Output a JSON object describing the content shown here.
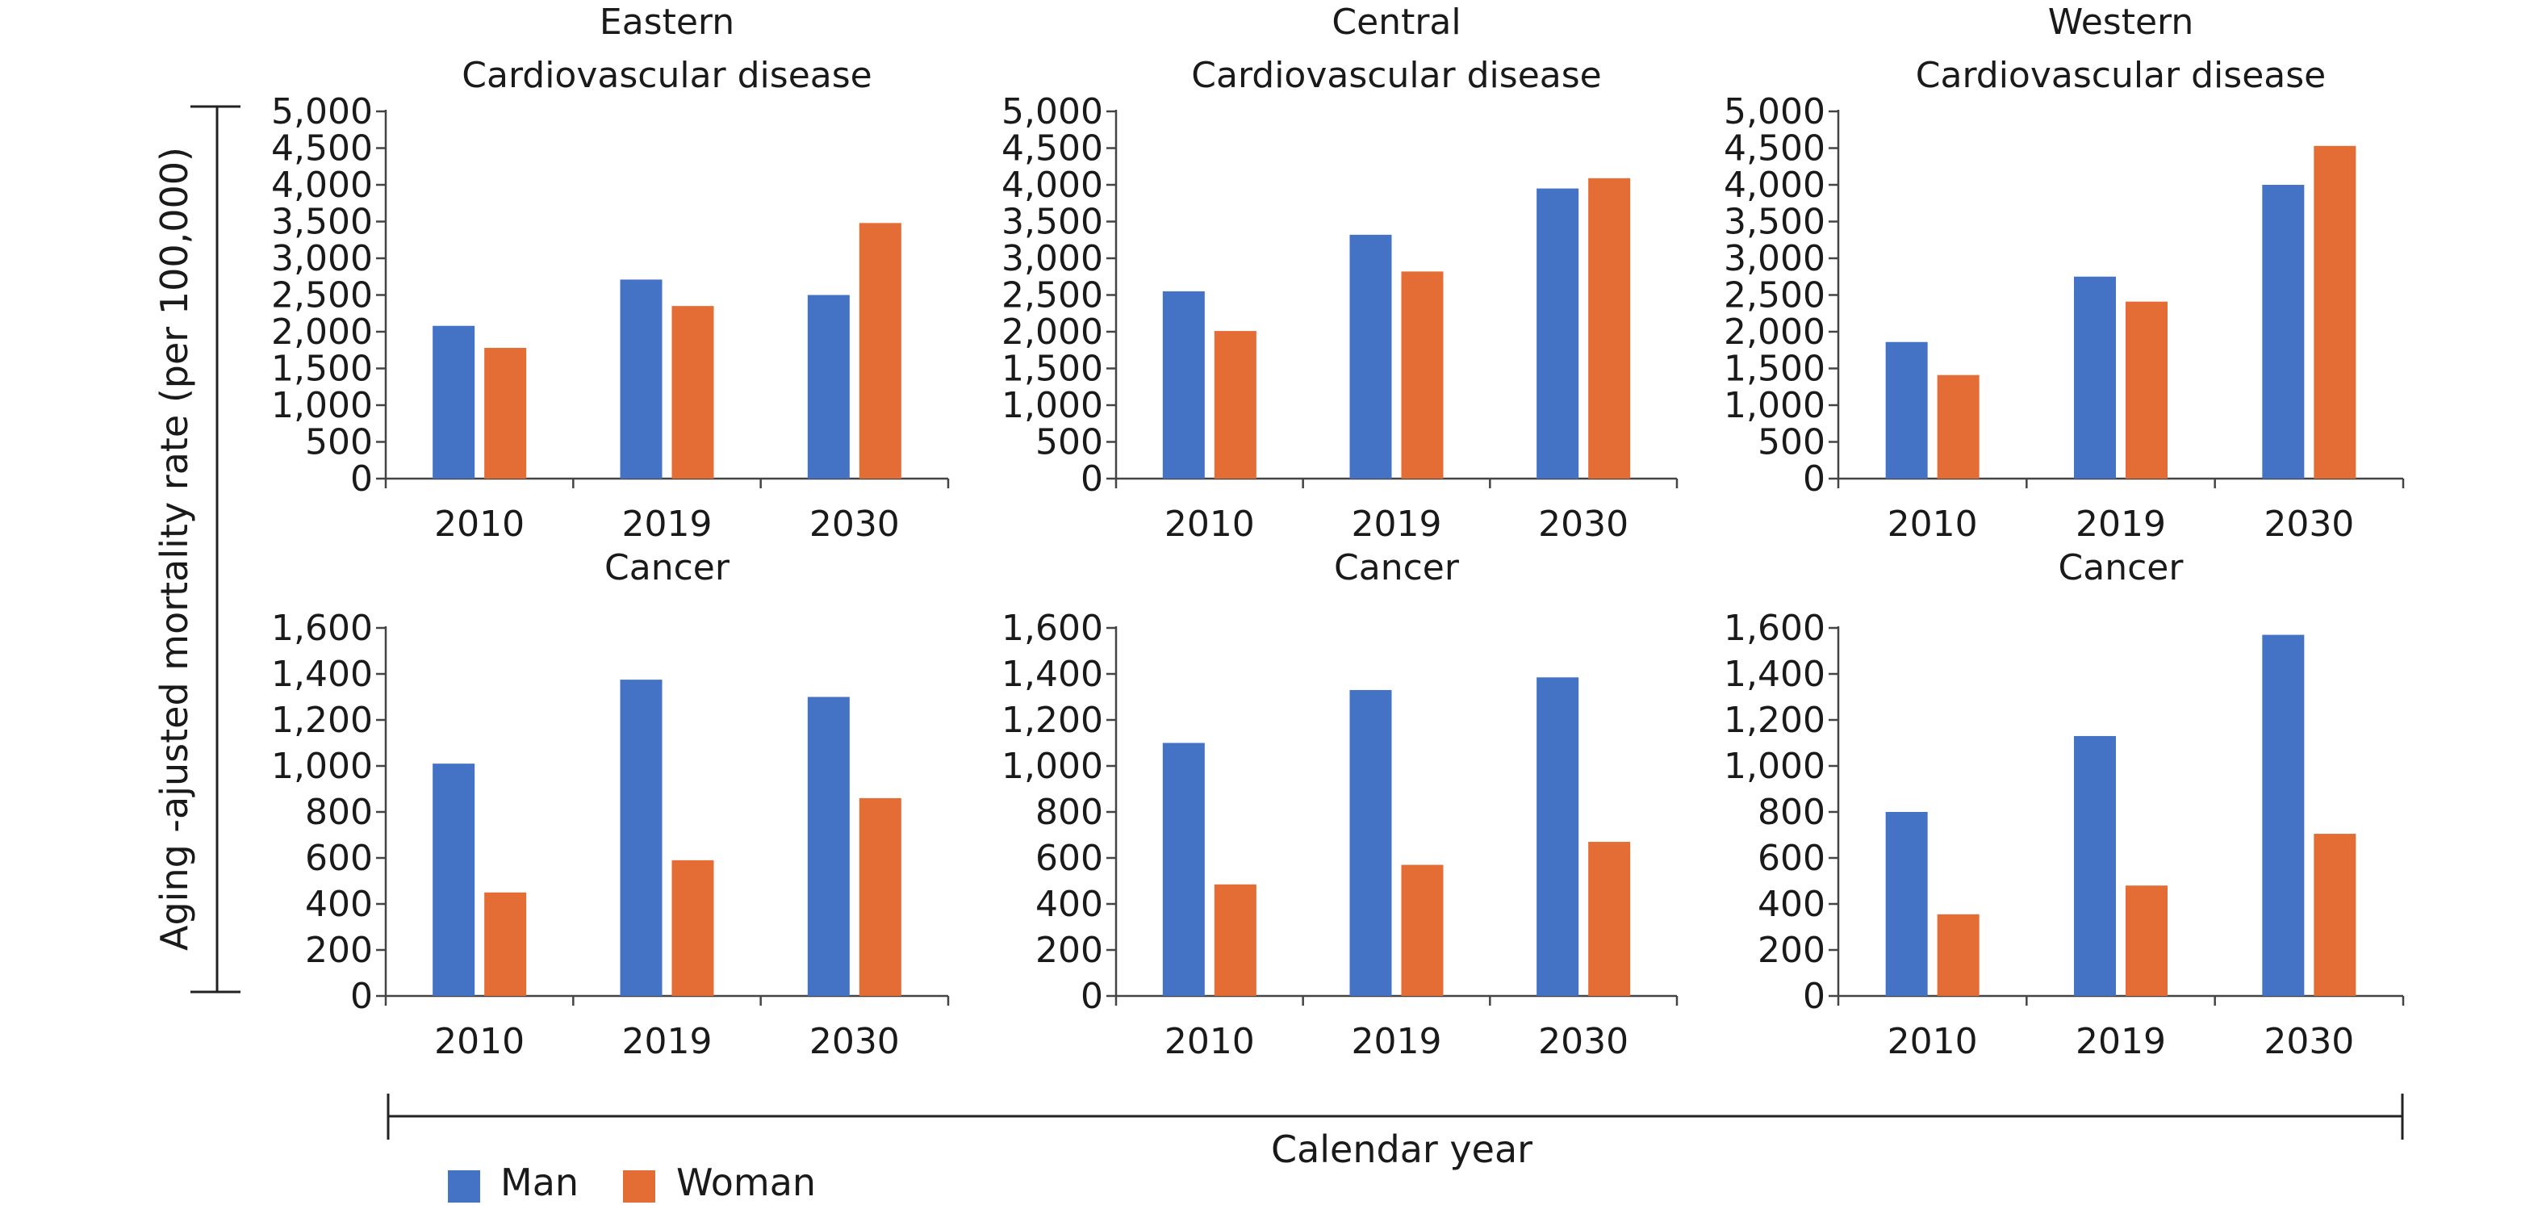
{
  "legend": {
    "items": [
      {
        "label": "Man",
        "color": "#4472C4"
      },
      {
        "label": "Woman",
        "color": "#E46C35"
      }
    ],
    "placement": "bottom-left"
  },
  "y_axis_label": "Aging -ajusted mortality rate (per 100,000)",
  "x_axis_label": "Calendar year",
  "chart_data": [
    {
      "type": "bar",
      "region": "Eastern",
      "title": "Cardiovascular disease",
      "categories": [
        "2010",
        "2019",
        "2030"
      ],
      "series": [
        {
          "name": "Man",
          "values": [
            2080,
            2710,
            2500
          ]
        },
        {
          "name": "Woman",
          "values": [
            1780,
            2350,
            3480
          ]
        }
      ],
      "ylim": [
        0,
        5000
      ],
      "yticks": [
        "0",
        "500",
        "1,000",
        "1,500",
        "2,000",
        "2,500",
        "3,000",
        "3,500",
        "4,000",
        "4,500",
        "5,000"
      ],
      "grid": false
    },
    {
      "type": "bar",
      "region": "Central",
      "title": "Cardiovascular disease",
      "categories": [
        "2010",
        "2019",
        "2030"
      ],
      "series": [
        {
          "name": "Man",
          "values": [
            2550,
            3320,
            3950
          ]
        },
        {
          "name": "Woman",
          "values": [
            2010,
            2820,
            4090
          ]
        }
      ],
      "ylim": [
        0,
        5000
      ],
      "yticks": [
        "0",
        "500",
        "1,000",
        "1,500",
        "2,000",
        "2,500",
        "3,000",
        "3,500",
        "4,000",
        "4,500",
        "5,000"
      ],
      "grid": false
    },
    {
      "type": "bar",
      "region": "Western",
      "title": "Cardiovascular disease",
      "categories": [
        "2010",
        "2019",
        "2030"
      ],
      "series": [
        {
          "name": "Man",
          "values": [
            1860,
            2750,
            4000
          ]
        },
        {
          "name": "Woman",
          "values": [
            1410,
            2410,
            4530
          ]
        }
      ],
      "ylim": [
        0,
        5000
      ],
      "yticks": [
        "0",
        "500",
        "1,000",
        "1,500",
        "2,000",
        "2,500",
        "3,000",
        "3,500",
        "4,000",
        "4,500",
        "5,000"
      ],
      "grid": false
    },
    {
      "type": "bar",
      "region": "",
      "title": "Cancer",
      "categories": [
        "2010",
        "2019",
        "2030"
      ],
      "series": [
        {
          "name": "Man",
          "values": [
            1010,
            1375,
            1300
          ]
        },
        {
          "name": "Woman",
          "values": [
            450,
            590,
            860
          ]
        }
      ],
      "ylim": [
        0,
        1600
      ],
      "yticks": [
        "0",
        "200",
        "400",
        "600",
        "800",
        "1,000",
        "1,200",
        "1,400",
        "1,600"
      ],
      "grid": false
    },
    {
      "type": "bar",
      "region": "",
      "title": "Cancer",
      "categories": [
        "2010",
        "2019",
        "2030"
      ],
      "series": [
        {
          "name": "Man",
          "values": [
            1100,
            1330,
            1385
          ]
        },
        {
          "name": "Woman",
          "values": [
            485,
            570,
            670
          ]
        }
      ],
      "ylim": [
        0,
        1600
      ],
      "yticks": [
        "0",
        "200",
        "400",
        "600",
        "800",
        "1,000",
        "1,200",
        "1,400",
        "1,600"
      ],
      "grid": false
    },
    {
      "type": "bar",
      "region": "",
      "title": "Cancer",
      "categories": [
        "2010",
        "2019",
        "2030"
      ],
      "series": [
        {
          "name": "Man",
          "values": [
            800,
            1130,
            1570
          ]
        },
        {
          "name": "Woman",
          "values": [
            355,
            480,
            705
          ]
        }
      ],
      "ylim": [
        0,
        1600
      ],
      "yticks": [
        "0",
        "200",
        "400",
        "600",
        "800",
        "1,000",
        "1,200",
        "1,400",
        "1,600"
      ],
      "grid": false
    }
  ]
}
